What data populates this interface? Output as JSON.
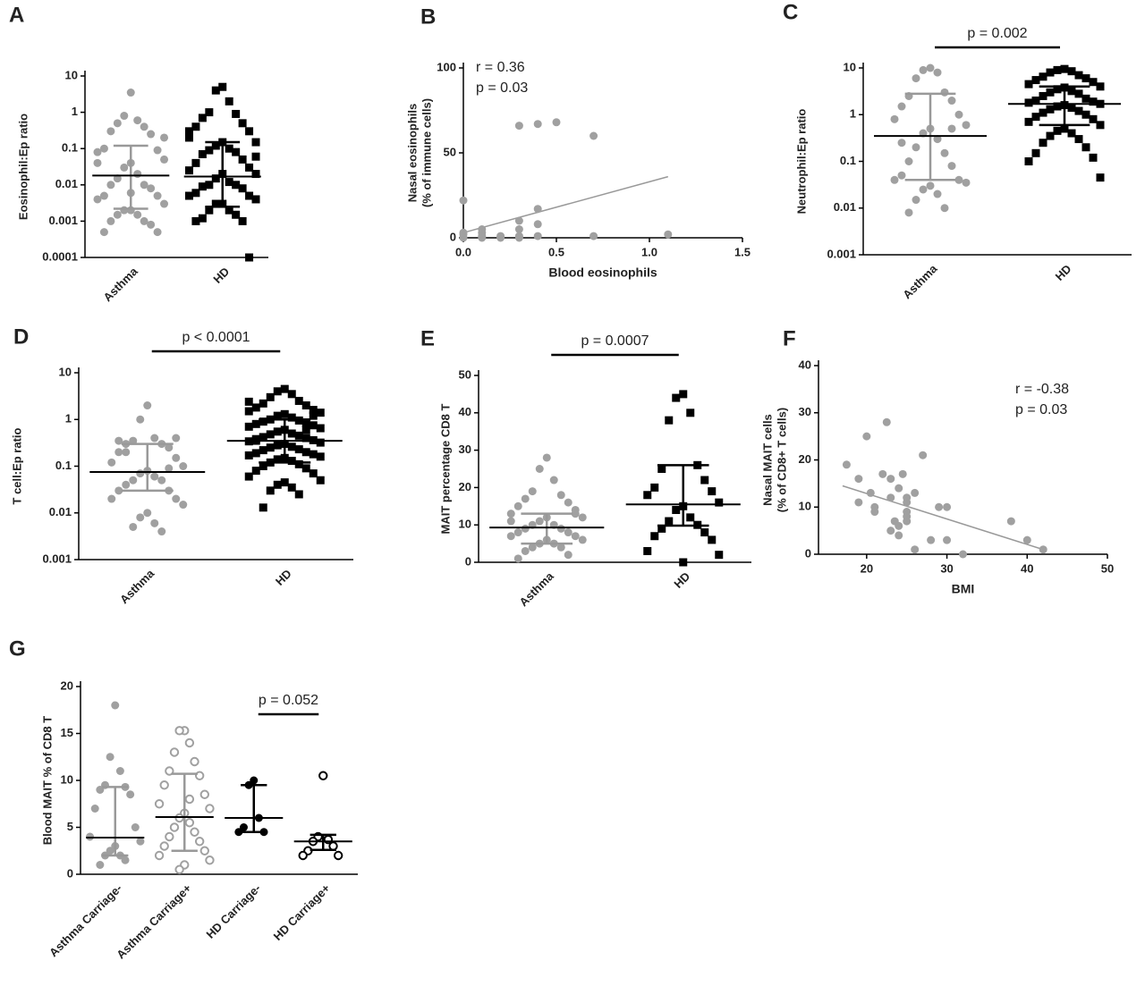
{
  "chart_data": [
    {
      "type": "dot",
      "label": "A",
      "ylabel": "Eosinophil:Ep ratio",
      "yscale": "log",
      "ylim": [
        0.0001,
        10
      ],
      "yticks": [
        0.0001,
        0.001,
        0.01,
        0.1,
        1,
        10
      ],
      "categories": [
        "Asthma",
        "HD"
      ],
      "colors": [
        "#a0a0a0",
        "#000000"
      ],
      "markers": [
        "circle",
        "square"
      ],
      "values": [
        [
          3.5,
          0.8,
          0.6,
          0.5,
          0.4,
          0.3,
          0.25,
          0.1,
          0.09,
          0.08,
          0.05,
          0.04,
          0.03,
          0.02,
          0.015,
          0.01,
          0.01,
          0.008,
          0.005,
          0.005,
          0.004,
          0.003,
          0.002,
          0.002,
          0.0015,
          0.0015,
          0.001,
          0.001,
          0.0008,
          0.0005,
          0.0005,
          0.04,
          0.2,
          0.006
        ],
        [
          5,
          4,
          2,
          1,
          0.9,
          0.7,
          0.5,
          0.4,
          0.3,
          0.2,
          0.15,
          0.15,
          0.12,
          0.1,
          0.09,
          0.08,
          0.07,
          0.05,
          0.04,
          0.03,
          0.025,
          0.02,
          0.02,
          0.015,
          0.012,
          0.01,
          0.01,
          0.009,
          0.008,
          0.006,
          0.005,
          0.005,
          0.004,
          0.003,
          0.003,
          0.002,
          0.002,
          0.0015,
          0.0012,
          0.001,
          0.001,
          0.0001,
          0.3,
          0.06
        ]
      ],
      "medians": [
        0.018,
        0.017
      ],
      "lower": [
        0.0022,
        0.0025
      ],
      "upper": [
        0.12,
        0.15
      ]
    },
    {
      "type": "scatter",
      "label": "B",
      "ylabel": [
        "Nasal eosinophils",
        "(% of immune cells)"
      ],
      "xlabel": "Blood eosinophils",
      "color": "#a0a0a0",
      "xlim": [
        0,
        1.5
      ],
      "ylim": [
        0,
        100
      ],
      "xticks": [
        {
          "value": 0,
          "label": "0.0"
        },
        0.5,
        {
          "value": 1,
          "label": "1.0"
        },
        1.5
      ],
      "yticks": [
        0,
        50,
        100
      ],
      "x": [
        0,
        0,
        0,
        0.1,
        0.1,
        0.1,
        0.2,
        0.3,
        0.3,
        0.3,
        0.3,
        0.4,
        0.4,
        0.4,
        0.4,
        0.5,
        0.7,
        0.7,
        1.1,
        0,
        0.1,
        0.2,
        0.3
      ],
      "y": [
        22,
        3,
        2,
        5,
        3,
        1,
        1,
        66,
        10,
        5,
        1,
        67,
        17,
        8,
        1,
        68,
        60,
        1,
        2,
        0,
        0,
        0,
        0
      ],
      "fit": {
        "x": [
          0,
          1.1
        ],
        "y": [
          3,
          36
        ]
      },
      "annotations": [
        "r = 0.36",
        "p = 0.03"
      ]
    },
    {
      "type": "dot",
      "label": "C",
      "ylabel": "Neutrophil:Ep ratio",
      "yscale": "log",
      "ylim": [
        0.001,
        10
      ],
      "yticks": [
        0.001,
        0.01,
        0.1,
        1,
        10
      ],
      "categories": [
        "Asthma",
        "HD"
      ],
      "colors": [
        "#a0a0a0",
        "#000000"
      ],
      "markers": [
        "circle",
        "square"
      ],
      "p_label": "p = 0.002",
      "values": [
        [
          10,
          9,
          8,
          6,
          3,
          2.5,
          2,
          1.5,
          1,
          0.8,
          0.6,
          0.5,
          0.4,
          0.3,
          0.2,
          0.15,
          0.1,
          0.08,
          0.05,
          0.04,
          0.04,
          0.035,
          0.03,
          0.025,
          0.02,
          0.015,
          0.01,
          0.008,
          0.5,
          0.25
        ],
        [
          9.5,
          9,
          8.5,
          8,
          7,
          6.5,
          6,
          5.5,
          5,
          4.5,
          4,
          3.8,
          3.5,
          3.2,
          3,
          2.8,
          2.5,
          2.2,
          2,
          1.9,
          1.8,
          1.7,
          1.6,
          1.5,
          1.4,
          1.3,
          1.2,
          1.1,
          1,
          0.9,
          0.8,
          0.7,
          0.6,
          0.5,
          0.45,
          0.4,
          0.35,
          0.3,
          0.25,
          0.2,
          0.15,
          0.12,
          0.1,
          0.045
        ]
      ],
      "medians": [
        0.35,
        1.7
      ],
      "lower": [
        0.04,
        0.6
      ],
      "upper": [
        2.8,
        4
      ]
    },
    {
      "type": "dot",
      "label": "D",
      "ylabel": "T cell:Ep ratio",
      "yscale": "log",
      "ylim": [
        0.001,
        10
      ],
      "yticks": [
        0.001,
        0.01,
        0.1,
        1,
        10
      ],
      "categories": [
        "Asthma",
        "HD"
      ],
      "colors": [
        "#a0a0a0",
        "#000000"
      ],
      "markers": [
        "circle",
        "square"
      ],
      "p_label": "p < 0.0001",
      "values": [
        [
          2,
          1,
          0.4,
          0.35,
          0.3,
          0.3,
          0.25,
          0.2,
          0.15,
          0.12,
          0.1,
          0.08,
          0.07,
          0.06,
          0.05,
          0.05,
          0.04,
          0.03,
          0.03,
          0.02,
          0.02,
          0.015,
          0.01,
          0.008,
          0.006,
          0.005,
          0.004,
          0.2,
          0.09,
          0.35,
          0.4
        ],
        [
          4.5,
          4,
          3.5,
          3,
          2.5,
          2.2,
          2,
          1.8,
          1.6,
          1.5,
          1.4,
          1.3,
          1.2,
          1.1,
          1,
          0.95,
          0.9,
          0.85,
          0.8,
          0.75,
          0.7,
          0.65,
          0.6,
          0.55,
          0.5,
          0.48,
          0.45,
          0.42,
          0.4,
          0.38,
          0.36,
          0.34,
          0.32,
          0.3,
          0.28,
          0.26,
          0.25,
          0.23,
          0.22,
          0.2,
          0.19,
          0.18,
          0.17,
          0.16,
          0.15,
          0.14,
          0.13,
          0.12,
          0.11,
          0.1,
          0.09,
          0.08,
          0.07,
          0.06,
          0.05,
          0.045,
          0.04,
          0.035,
          0.03,
          0.025,
          0.013,
          0.6,
          0.35,
          1.2,
          2.4
        ]
      ],
      "medians": [
        0.075,
        0.35
      ],
      "lower": [
        0.03,
        0.12
      ],
      "upper": [
        0.3,
        1
      ]
    },
    {
      "type": "dot",
      "label": "E",
      "ylabel": "MAIT percentage CD8 T",
      "ylim": [
        0,
        50
      ],
      "yticks": [
        0,
        10,
        20,
        30,
        40,
        50
      ],
      "categories": [
        "Asthma",
        "HD"
      ],
      "colors": [
        "#a0a0a0",
        "#000000"
      ],
      "markers": [
        "circle",
        "square"
      ],
      "p_label": "p = 0.0007",
      "values": [
        [
          28,
          25,
          22,
          19,
          18,
          17,
          16,
          15,
          14,
          13,
          12,
          12,
          11,
          10,
          10,
          9,
          9,
          8,
          8,
          7,
          7,
          6,
          6,
          5,
          5,
          4,
          4,
          3,
          2,
          1,
          13,
          11
        ],
        [
          45,
          44,
          40,
          38,
          26,
          25,
          22,
          20,
          19,
          18,
          16,
          15,
          14,
          12,
          11,
          10,
          9,
          8,
          7,
          6,
          3,
          2,
          0
        ]
      ],
      "medians": [
        9.3,
        15.5
      ],
      "lower": [
        5,
        9.8
      ],
      "upper": [
        13,
        26
      ]
    },
    {
      "type": "scatter",
      "label": "F",
      "ylabel": [
        "Nasal MAIT cells",
        "(% of CD8+ T cells)"
      ],
      "xlabel": "BMI",
      "color": "#a0a0a0",
      "xlim": [
        14,
        50
      ],
      "ylim": [
        0,
        40
      ],
      "xticks": [
        20,
        30,
        40,
        50
      ],
      "yticks": [
        0,
        10,
        20,
        30,
        40
      ],
      "x": [
        17.5,
        19,
        20,
        20.5,
        21,
        21,
        22,
        22.5,
        23,
        23,
        23,
        24,
        24,
        24,
        24.5,
        25,
        25,
        25,
        25,
        25,
        26,
        26,
        27,
        28,
        29,
        30,
        30,
        32,
        38,
        40,
        42,
        19,
        23.5
      ],
      "y": [
        19,
        16,
        25,
        13,
        10,
        9,
        17,
        28,
        16,
        12,
        5,
        4,
        6,
        14,
        17,
        12,
        11,
        7,
        8,
        9,
        13,
        1,
        21,
        3,
        10,
        10,
        3,
        0,
        7,
        3,
        1,
        11,
        7
      ],
      "fit": {
        "x": [
          17,
          42
        ],
        "y": [
          14.5,
          1
        ]
      },
      "annotations": [
        "r = -0.38",
        "p = 0.03"
      ]
    },
    {
      "type": "dot",
      "label": "G",
      "ylabel": "Blood MAIT % of CD8 T",
      "ylim": [
        0,
        20
      ],
      "yticks": [
        0,
        5,
        10,
        15,
        20
      ],
      "categories": [
        "Asthma Carriage-",
        "Asthma Carriage+",
        "HD Carriage-",
        "HD Carriage+"
      ],
      "colors": [
        "#a0a0a0",
        "#a0a0a0",
        "#000000",
        "#000000"
      ],
      "markers": [
        "circle",
        "open-circle",
        "circle",
        "open-circle"
      ],
      "p_label": "p = 0.052",
      "values": [
        [
          18,
          12.5,
          11,
          9.5,
          9.3,
          9,
          8.5,
          7,
          5,
          4,
          3.5,
          3,
          2.5,
          2,
          2,
          1.5,
          1
        ],
        [
          15.3,
          15.3,
          14,
          13,
          12,
          11,
          10.5,
          9.5,
          8.5,
          7.5,
          7,
          6.5,
          6,
          5.5,
          5,
          4.5,
          4,
          3.5,
          3,
          2.5,
          2,
          1.5,
          1,
          0.5,
          8
        ],
        [
          10,
          9.5,
          6,
          5,
          4.5,
          4.5
        ],
        [
          10.5,
          4,
          3.7,
          3.5,
          3,
          2.5,
          2,
          2
        ]
      ],
      "medians": [
        3.9,
        6.1,
        6,
        3.5
      ],
      "lower": [
        2,
        2.5,
        4.5,
        2.6
      ],
      "upper": [
        9.3,
        10.7,
        9.5,
        4.2
      ]
    }
  ]
}
